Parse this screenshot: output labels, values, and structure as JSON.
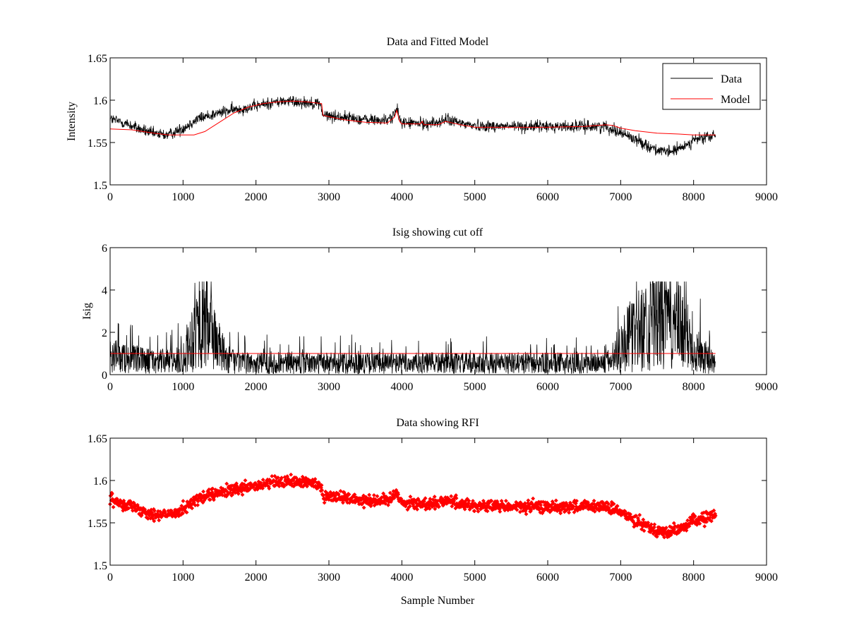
{
  "figure": {
    "background": "#ffffff"
  },
  "chart_data": [
    {
      "type": "line",
      "title": "Data and Fitted Model",
      "xlabel": "",
      "ylabel": "Intensity",
      "xlim": [
        0,
        9000
      ],
      "ylim": [
        1.5,
        1.65
      ],
      "xticks": [
        "0",
        "1000",
        "2000",
        "3000",
        "4000",
        "5000",
        "6000",
        "7000",
        "8000",
        "9000"
      ],
      "yticks": [
        "1.5",
        "1.55",
        "1.6",
        "1.65"
      ],
      "grid": false,
      "legend": {
        "placement": "top-right",
        "entries": [
          "Data",
          "Model"
        ]
      },
      "series": [
        {
          "name": "Data",
          "color": "#000000",
          "style": "noisy-line",
          "noise": 0.005,
          "x": [
            0,
            200,
            400,
            600,
            800,
            1000,
            1200,
            1400,
            1600,
            1800,
            2000,
            2200,
            2400,
            2600,
            2880,
            2920,
            3200,
            3500,
            3800,
            3900,
            3930,
            3970,
            4000,
            4300,
            4500,
            4600,
            4800,
            5000,
            5500,
            6000,
            6500,
            6800,
            7000,
            7200,
            7400,
            7600,
            7800,
            8000,
            8300
          ],
          "y": [
            1.578,
            1.573,
            1.566,
            1.56,
            1.559,
            1.567,
            1.578,
            1.583,
            1.587,
            1.59,
            1.593,
            1.597,
            1.599,
            1.598,
            1.596,
            1.582,
            1.58,
            1.577,
            1.576,
            1.584,
            1.589,
            1.578,
            1.574,
            1.572,
            1.574,
            1.577,
            1.573,
            1.57,
            1.569,
            1.569,
            1.569,
            1.569,
            1.562,
            1.554,
            1.545,
            1.538,
            1.542,
            1.553,
            1.558
          ]
        },
        {
          "name": "Model",
          "color": "#ff0000",
          "style": "line",
          "x": [
            0,
            300,
            600,
            800,
            1000,
            1150,
            1300,
            1500,
            1700,
            1900,
            2100,
            2300,
            2500,
            2700,
            2900,
            2920,
            3200,
            3500,
            3800,
            3900,
            3930,
            3970,
            4000,
            4250,
            4280,
            4300,
            4500,
            4600,
            4800,
            5000,
            5500,
            6000,
            6500,
            6800,
            6900,
            7000,
            7200,
            7500,
            7800,
            8000,
            8300
          ],
          "y": [
            1.566,
            1.565,
            1.561,
            1.559,
            1.559,
            1.559,
            1.563,
            1.574,
            1.585,
            1.592,
            1.596,
            1.598,
            1.599,
            1.598,
            1.596,
            1.582,
            1.577,
            1.574,
            1.573,
            1.58,
            1.588,
            1.575,
            1.572,
            1.572,
            1.575,
            1.571,
            1.571,
            1.575,
            1.571,
            1.568,
            1.568,
            1.568,
            1.569,
            1.571,
            1.57,
            1.567,
            1.564,
            1.561,
            1.56,
            1.559,
            1.559
          ]
        }
      ]
    },
    {
      "type": "line",
      "title": "Isig showing cut off",
      "xlabel": "",
      "ylabel": "Isig",
      "xlim": [
        0,
        9000
      ],
      "ylim": [
        0,
        6
      ],
      "xticks": [
        "0",
        "1000",
        "2000",
        "3000",
        "4000",
        "5000",
        "6000",
        "7000",
        "8000",
        "9000"
      ],
      "yticks": [
        "0",
        "2",
        "4",
        "6"
      ],
      "grid": false,
      "series": [
        {
          "color": "#000000",
          "style": "noise-band",
          "x": [
            0,
            300,
            600,
            900,
            1000,
            1100,
            1200,
            1300,
            1400,
            1500,
            1600,
            1800,
            2500,
            3000,
            3500,
            4000,
            4500,
            5000,
            5500,
            6000,
            6500,
            6800,
            6900,
            7000,
            7200,
            7400,
            7600,
            7800,
            8000,
            8200,
            8300
          ],
          "y": [
            1.0,
            0.8,
            0.7,
            0.7,
            0.9,
            1.8,
            2.6,
            2.8,
            2.3,
            1.4,
            0.8,
            0.6,
            0.6,
            0.6,
            0.6,
            0.6,
            0.6,
            0.6,
            0.6,
            0.6,
            0.6,
            0.6,
            0.9,
            1.6,
            2.2,
            2.7,
            3.1,
            2.6,
            1.5,
            0.8,
            0.6
          ]
        },
        {
          "color": "#ff0000",
          "style": "line",
          "x": [
            0,
            8300
          ],
          "y": [
            1.0,
            1.0
          ]
        }
      ]
    },
    {
      "type": "scatter",
      "title": "Data showing RFI",
      "xlabel": "Sample Number",
      "ylabel": "",
      "xlim": [
        0,
        9000
      ],
      "ylim": [
        1.5,
        1.65
      ],
      "xticks": [
        "0",
        "1000",
        "2000",
        "3000",
        "4000",
        "5000",
        "6000",
        "7000",
        "8000",
        "9000"
      ],
      "yticks": [
        "1.5",
        "1.55",
        "1.6",
        "1.65"
      ],
      "grid": false,
      "series": [
        {
          "color": "#ff0000",
          "style": "dense-markers",
          "noise": 0.005,
          "x": [
            0,
            200,
            400,
            600,
            800,
            1000,
            1200,
            1400,
            1600,
            1800,
            2000,
            2200,
            2400,
            2600,
            2880,
            2920,
            3200,
            3500,
            3800,
            3900,
            3930,
            3970,
            4000,
            4300,
            4500,
            4600,
            4800,
            5000,
            5500,
            6000,
            6500,
            6800,
            7000,
            7200,
            7400,
            7600,
            7800,
            8000,
            8300
          ],
          "y": [
            1.578,
            1.573,
            1.566,
            1.56,
            1.559,
            1.567,
            1.578,
            1.583,
            1.587,
            1.59,
            1.593,
            1.597,
            1.599,
            1.598,
            1.596,
            1.582,
            1.58,
            1.577,
            1.576,
            1.584,
            1.589,
            1.578,
            1.574,
            1.572,
            1.574,
            1.577,
            1.573,
            1.57,
            1.569,
            1.569,
            1.569,
            1.569,
            1.562,
            1.554,
            1.545,
            1.538,
            1.542,
            1.553,
            1.558
          ]
        }
      ]
    }
  ]
}
